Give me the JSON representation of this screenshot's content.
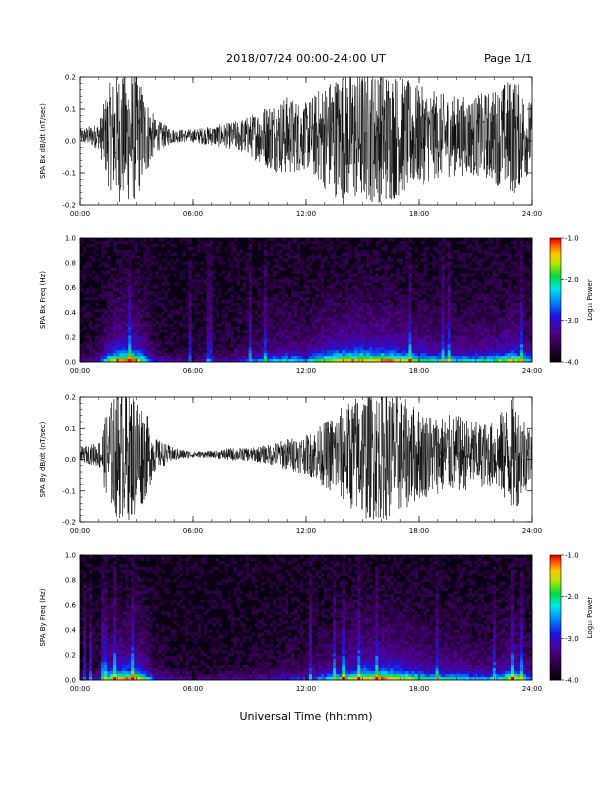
{
  "title": "2018/07/24  00:00-24:00 UT",
  "page": "Page 1/1",
  "xlabel": "Universal Time (hh:mm)",
  "x_ticks": [
    "00:00",
    "06:00",
    "12:00",
    "18:00",
    "24:00"
  ],
  "colorbar": {
    "label": "Log₁₀ Power",
    "ticks": [
      "-1.0",
      "-2.0",
      "-3.0",
      "-4.0"
    ],
    "range": [
      -4.0,
      -1.0
    ]
  },
  "chart_data": [
    {
      "type": "line",
      "ylabel": "SPA Bx dB/dt (nT/sec)",
      "y_ticks": [
        "0.2",
        "0.1",
        "0.0",
        "-0.1",
        "-0.2"
      ],
      "ylim": [
        -0.2,
        0.2
      ],
      "xlim_hours": [
        0,
        24
      ],
      "series": [
        {
          "x_hours": [
            0,
            1,
            1.5,
            2,
            2.5,
            3,
            3.5,
            4,
            5,
            6,
            7,
            8,
            9,
            10,
            11,
            12,
            13,
            14,
            15,
            15.5,
            16,
            16.5,
            17,
            18,
            19,
            20,
            21,
            22,
            23,
            24
          ],
          "envelope": [
            0.02,
            0.04,
            0.15,
            0.2,
            0.2,
            0.2,
            0.12,
            0.05,
            0.02,
            0.02,
            0.03,
            0.04,
            0.06,
            0.1,
            0.12,
            0.1,
            0.16,
            0.2,
            0.2,
            0.2,
            0.2,
            0.2,
            0.18,
            0.15,
            0.13,
            0.12,
            0.12,
            0.14,
            0.18,
            0.1
          ]
        }
      ]
    },
    {
      "type": "heatmap",
      "ylabel": "SPA Bx Freq (Hz)",
      "y_ticks": [
        "1.0",
        "0.8",
        "0.6",
        "0.4",
        "0.2",
        "0.0"
      ],
      "ylim": [
        0.0,
        1.0
      ],
      "xlim_hours": [
        0,
        24
      ],
      "zlim": [
        -4.0,
        -1.0
      ]
    },
    {
      "type": "line",
      "ylabel": "SPA By dB/dt (nT/sec)",
      "y_ticks": [
        "0.2",
        "0.1",
        "0.0",
        "-0.1",
        "-0.2"
      ],
      "ylim": [
        -0.2,
        0.2
      ],
      "xlim_hours": [
        0,
        24
      ],
      "series": [
        {
          "x_hours": [
            0,
            1,
            1.5,
            2,
            2.5,
            3,
            3.5,
            4,
            5,
            6,
            7,
            8,
            9,
            10,
            11,
            12,
            13,
            14,
            15,
            15.5,
            16,
            16.5,
            17,
            18,
            19,
            20,
            21,
            22,
            23,
            24
          ],
          "envelope": [
            0.02,
            0.04,
            0.15,
            0.2,
            0.2,
            0.2,
            0.13,
            0.05,
            0.02,
            0.01,
            0.01,
            0.02,
            0.02,
            0.03,
            0.05,
            0.06,
            0.1,
            0.15,
            0.2,
            0.2,
            0.2,
            0.2,
            0.18,
            0.14,
            0.12,
            0.12,
            0.1,
            0.1,
            0.18,
            0.08
          ]
        }
      ]
    },
    {
      "type": "heatmap",
      "ylabel": "SPA By Freq (Hz)",
      "y_ticks": [
        "1.0",
        "0.8",
        "0.6",
        "0.4",
        "0.2",
        "0.0"
      ],
      "ylim": [
        0.0,
        1.0
      ],
      "xlim_hours": [
        0,
        24
      ],
      "zlim": [
        -4.0,
        -1.0
      ]
    }
  ]
}
